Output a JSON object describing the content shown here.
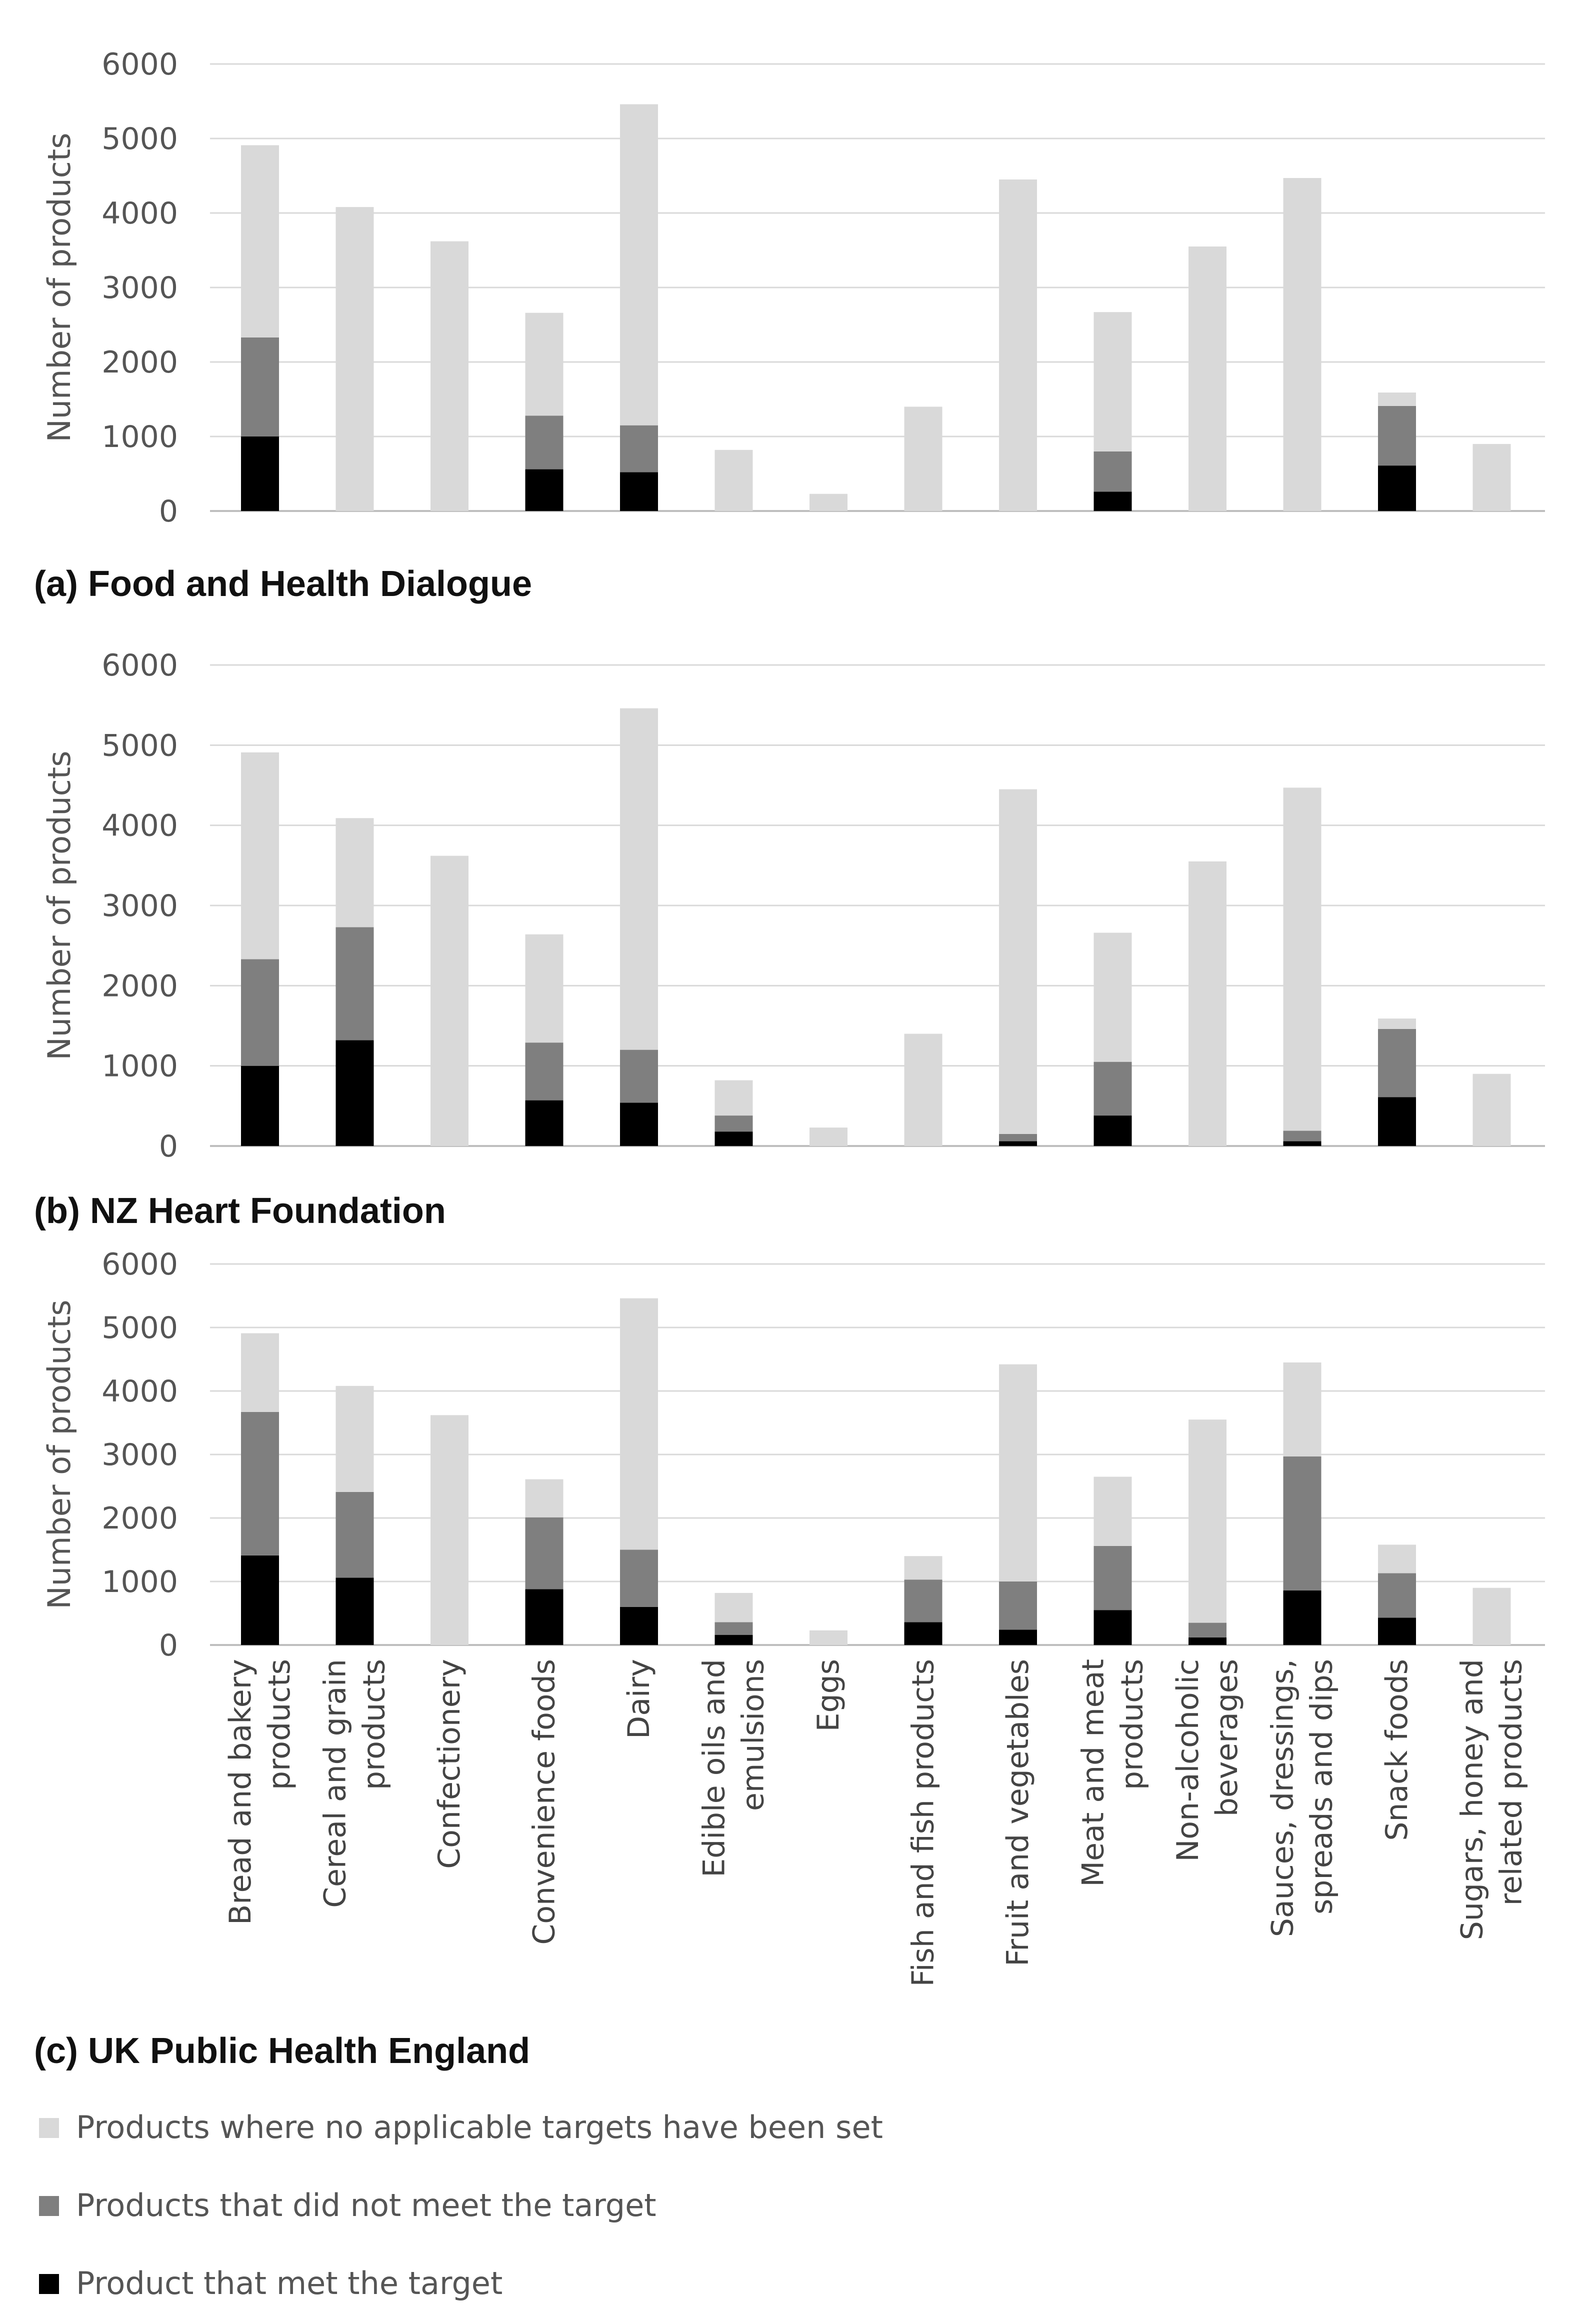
{
  "colors": {
    "no_target": "#d9d9d9",
    "not_met": "#7f7f7f",
    "met": "#000000"
  },
  "chart_data": [
    {
      "type": "bar",
      "stacked": true,
      "title": "(a) Food and Health Dialogue",
      "ylabel": "Number of products",
      "ylim": [
        0,
        6000
      ],
      "yticks": [
        0,
        1000,
        2000,
        3000,
        4000,
        5000,
        6000
      ],
      "categories": [
        "Bread and bakery products",
        "Cereal and grain products",
        "Confectionery",
        "Convenience foods",
        "Dairy",
        "Edible oils and emulsions",
        "Eggs",
        "Fish and fish products",
        "Fruit and vegetables",
        "Meat and meat products",
        "Non-alcoholic beverages",
        "Sauces, dressings, spreads and dips",
        "Snack foods",
        "Sugars, honey and related products"
      ],
      "series": [
        {
          "name": "Product that met the target",
          "values": [
            1000,
            0,
            0,
            560,
            520,
            0,
            0,
            0,
            0,
            260,
            0,
            0,
            610,
            0
          ]
        },
        {
          "name": "Products that did not meet the target",
          "values": [
            1330,
            0,
            0,
            720,
            630,
            0,
            0,
            0,
            0,
            540,
            0,
            0,
            800,
            0
          ]
        },
        {
          "name": "Products where no applicable targets have been set",
          "values": [
            2580,
            4080,
            3620,
            1380,
            4310,
            820,
            230,
            1400,
            4450,
            1870,
            3550,
            4470,
            180,
            900
          ]
        }
      ]
    },
    {
      "type": "bar",
      "stacked": true,
      "title": "(b) NZ Heart Foundation",
      "ylabel": "Number of products",
      "ylim": [
        0,
        6000
      ],
      "yticks": [
        0,
        1000,
        2000,
        3000,
        4000,
        5000,
        6000
      ],
      "categories": [
        "Bread and bakery products",
        "Cereal and grain products",
        "Confectionery",
        "Convenience foods",
        "Dairy",
        "Edible oils and emulsions",
        "Eggs",
        "Fish and fish products",
        "Fruit and vegetables",
        "Meat and meat products",
        "Non-alcoholic beverages",
        "Sauces, dressings, spreads and dips",
        "Snack foods",
        "Sugars, honey and related products"
      ],
      "series": [
        {
          "name": "Product that met the target",
          "values": [
            1000,
            1320,
            0,
            570,
            540,
            180,
            0,
            0,
            60,
            380,
            0,
            60,
            610,
            0
          ]
        },
        {
          "name": "Products that did not meet the target",
          "values": [
            1330,
            1410,
            0,
            720,
            660,
            200,
            0,
            0,
            90,
            670,
            0,
            130,
            850,
            0
          ]
        },
        {
          "name": "Products where no applicable targets have been set",
          "values": [
            2580,
            1360,
            3620,
            1350,
            4260,
            440,
            230,
            1400,
            4300,
            1610,
            3550,
            4280,
            130,
            900
          ]
        }
      ]
    },
    {
      "type": "bar",
      "stacked": true,
      "title": "(c) UK Public Health England",
      "ylabel": "Number of products",
      "ylim": [
        0,
        6000
      ],
      "yticks": [
        0,
        1000,
        2000,
        3000,
        4000,
        5000,
        6000
      ],
      "categories": [
        "Bread and bakery products",
        "Cereal and grain products",
        "Confectionery",
        "Convenience foods",
        "Dairy",
        "Edible oils and emulsions",
        "Eggs",
        "Fish and fish products",
        "Fruit and vegetables",
        "Meat and meat products",
        "Non-alcoholic beverages",
        "Sauces, dressings, spreads and dips",
        "Snack foods",
        "Sugars, honey and related products"
      ],
      "series": [
        {
          "name": "Product that met the target",
          "values": [
            1410,
            1060,
            0,
            880,
            600,
            160,
            0,
            360,
            240,
            550,
            120,
            860,
            430,
            0
          ]
        },
        {
          "name": "Products that did not meet the target",
          "values": [
            2260,
            1350,
            0,
            1130,
            900,
            200,
            0,
            670,
            760,
            1010,
            230,
            2110,
            700,
            0
          ]
        },
        {
          "name": "Products where no applicable targets have been set",
          "values": [
            1240,
            1670,
            3620,
            600,
            3960,
            460,
            230,
            370,
            3420,
            1090,
            3200,
            1480,
            450,
            900
          ]
        }
      ]
    }
  ],
  "category_labels": [
    [
      "Bread and bakery",
      "products"
    ],
    [
      "Cereal and grain",
      "products"
    ],
    [
      "Confectionery"
    ],
    [
      "Convenience foods"
    ],
    [
      "Dairy"
    ],
    [
      "Edible oils and",
      "emulsions"
    ],
    [
      "Eggs"
    ],
    [
      "Fish and fish products"
    ],
    [
      "Fruit and vegetables"
    ],
    [
      "Meat and meat",
      "products"
    ],
    [
      "Non-alcoholic",
      "beverages"
    ],
    [
      "Sauces, dressings,",
      "spreads and dips"
    ],
    [
      "Snack foods"
    ],
    [
      "Sugars, honey and",
      "related products"
    ]
  ],
  "legend": [
    {
      "label": "Products where no applicable targets have been set",
      "color_key": "no_target"
    },
    {
      "label": "Products that did not meet the target",
      "color_key": "not_met"
    },
    {
      "label": "Product that met the target",
      "color_key": "met"
    }
  ]
}
